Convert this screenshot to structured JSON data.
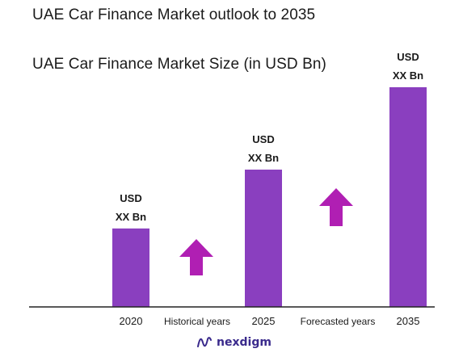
{
  "title": "UAE Car Finance Market outlook to 2035",
  "subtitle": "UAE Car Finance Market Size (in USD Bn)",
  "chart_data": {
    "type": "bar",
    "title": "UAE Car Finance Market outlook to 2035",
    "subtitle": "UAE Car Finance Market Size (in USD Bn)",
    "categories": [
      "2020",
      "2025",
      "2035"
    ],
    "values": [
      1.0,
      1.75,
      2.8
    ],
    "data_labels": [
      [
        "USD",
        "XX Bn"
      ],
      [
        "USD",
        "XX Bn"
      ],
      [
        "USD",
        "XX Bn"
      ]
    ],
    "segment_labels": [
      "Historical years",
      "Forecasted years"
    ],
    "growth_arrows": 2,
    "bar_color": "#8a3fbf",
    "arrow_color": "#b01fb3",
    "axis_color": "#222222",
    "grid": false,
    "legend": "none"
  },
  "logo": {
    "text": "nexdigm",
    "color": "#3a2a8c"
  }
}
